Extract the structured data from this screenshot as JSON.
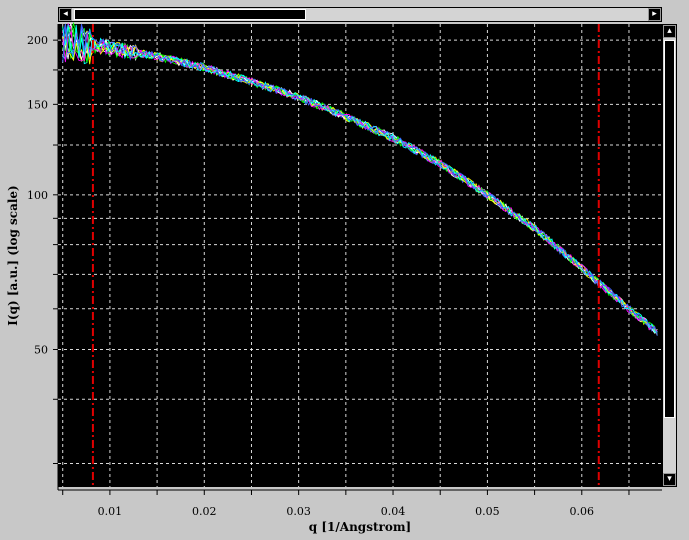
{
  "chart_data": {
    "type": "line",
    "title": "",
    "xlabel": "q [1/Angstrom]",
    "ylabel": "I(q) [a.u.] (log scale)",
    "xlim": [
      0.0045,
      0.0685
    ],
    "ylim": [
      27,
      215
    ],
    "y_scale": "log",
    "grid": true,
    "x_ticks": [
      0.01,
      0.02,
      0.03,
      0.04,
      0.05,
      0.06
    ],
    "x_tick_labels": [
      "0.01",
      "0.02",
      "0.03",
      "0.04",
      "0.05",
      "0.06"
    ],
    "y_ticks": [
      50,
      100,
      150,
      200
    ],
    "y_tick_labels": [
      "50",
      "100",
      "150",
      "200"
    ],
    "vertical_markers": [
      0.0082,
      0.0618
    ],
    "series_colors": [
      "#ffffff",
      "#00ff00",
      "#ffff00",
      "#ff00ff",
      "#00ffff",
      "#4060ff"
    ],
    "curve": {
      "x": [
        0.005,
        0.008,
        0.01,
        0.015,
        0.02,
        0.025,
        0.03,
        0.035,
        0.04,
        0.045,
        0.05,
        0.055,
        0.06,
        0.065,
        0.068
      ],
      "y": [
        198,
        196,
        193,
        186,
        177,
        166,
        155,
        142,
        129,
        115,
        100,
        86,
        72,
        60,
        54
      ]
    }
  },
  "icons": {
    "scroll_left": "◂",
    "scroll_right": "▸",
    "scroll_up": "▴",
    "scroll_down": "▾"
  }
}
